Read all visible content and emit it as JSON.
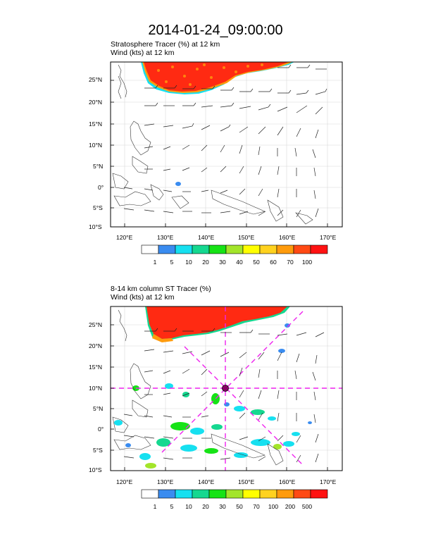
{
  "title": "2014-01-24_09:00:00",
  "panel1": {
    "line1": "Stratosphere Tracer   (%)     at   12 km",
    "line2": "Wind    (kts)      at  12 km",
    "colorbar_labels": [
      "1",
      "5",
      "10",
      "20",
      "30",
      "40",
      "50",
      "60",
      "70",
      "100"
    ]
  },
  "panel2": {
    "line1": "8-14 km column ST Tracer   (%)",
    "line2": "Wind    (kts)      at  12 km",
    "colorbar_labels": [
      "1",
      "5",
      "10",
      "20",
      "30",
      "50",
      "70",
      "100",
      "200",
      "500"
    ]
  },
  "axes": {
    "lat_labels": [
      "25°N",
      "20°N",
      "15°N",
      "10°N",
      "5°N",
      "0°",
      "5°S",
      "10°S"
    ],
    "lon_labels": [
      "120°E",
      "130°E",
      "140°E",
      "150°E",
      "160°E",
      "170°E"
    ]
  },
  "colors": {
    "scale": [
      "#ffffff",
      "#3a8cf0",
      "#16e0f0",
      "#15d890",
      "#16e316",
      "#a3e52a",
      "#ffff00",
      "#ffd21f",
      "#ff9b0c",
      "#ff4a14",
      "#ff1212"
    ],
    "dash": "#ee22ee"
  },
  "chart_data": {
    "type": "map",
    "extent": {
      "lon": [
        116,
        174
      ],
      "lat": [
        -10,
        29
      ]
    },
    "center_marker": {
      "lon": 145,
      "lat": 10
    }
  }
}
